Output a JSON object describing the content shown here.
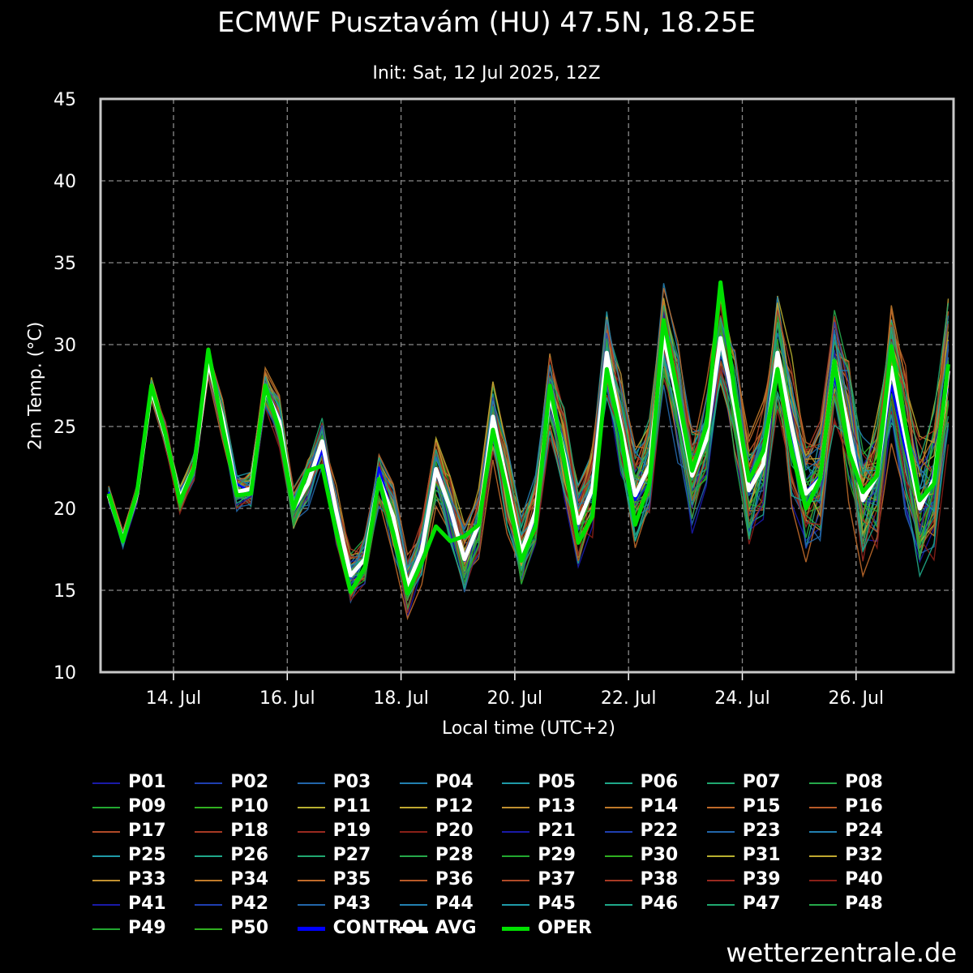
{
  "title": "ECMWF Pusztavám (HU) 47.5N, 18.25E",
  "subtitle": "Init: Sat, 12 Jul 2025, 12Z",
  "watermark": "wetterzentrale.de",
  "chart_data": {
    "type": "line",
    "ylabel": "2m Temp. (°C)",
    "xlabel": "Local time (UTC+2)",
    "ylim": [
      10,
      45
    ],
    "yticks": [
      10,
      15,
      20,
      25,
      30,
      35,
      40,
      45
    ],
    "x_start": "2025-07-12 20:00",
    "x_step_hours": 6,
    "x_tick_labels": [
      "14. Jul",
      "16. Jul",
      "18. Jul",
      "20. Jul",
      "22. Jul",
      "24. Jul",
      "26. Jul"
    ],
    "grid": true,
    "legend_placement": "below",
    "series": [
      {
        "name": "CONTROL",
        "color": "#0000ff",
        "values": [
          21,
          18.2,
          21,
          27.5,
          24.3,
          20.5,
          22.5,
          29.5,
          25.5,
          21.5,
          21,
          27.5,
          25.5,
          20,
          21.5,
          23.5,
          19.5,
          15.8,
          16.8,
          22.5,
          19.5,
          15.2,
          17.2,
          22.2,
          19.8,
          16.8,
          18.8,
          25.2,
          21.2,
          17.2,
          19.5,
          27,
          23,
          19,
          21,
          28.5,
          24,
          20.5,
          22.5,
          31,
          26.5,
          22,
          24,
          30.5,
          26.5,
          21.5,
          23.5,
          28.5,
          24.5,
          21,
          22,
          28,
          24.5,
          20.5,
          22,
          27.5,
          23.5,
          20,
          22,
          28
        ]
      },
      {
        "name": "AVG",
        "color": "#ffffff",
        "values": [
          20.8,
          18.1,
          20.9,
          27.3,
          24.4,
          20.6,
          22.5,
          29,
          25.5,
          21,
          21.2,
          27.3,
          25.3,
          20,
          21.5,
          24.1,
          19.8,
          15.9,
          16.9,
          21.8,
          19.5,
          15.3,
          17.4,
          22.4,
          20,
          16.9,
          19,
          25.6,
          21.5,
          17.3,
          19.8,
          27,
          23.3,
          19.1,
          21.2,
          29.5,
          25,
          20.8,
          22.6,
          30.5,
          26.5,
          22,
          24.2,
          30.4,
          26.2,
          21.1,
          22.7,
          29.5,
          25,
          20.9,
          21.8,
          29,
          24.8,
          20.5,
          22,
          28.6,
          24.3,
          20,
          21.8,
          28.4
        ]
      },
      {
        "name": "OPER",
        "color": "#00e000",
        "values": [
          20.9,
          18,
          21,
          27.5,
          24.5,
          20.4,
          22.5,
          29.7,
          25,
          20.8,
          20.9,
          27.5,
          24.8,
          20,
          22.3,
          22.6,
          18.5,
          14.9,
          16.4,
          21.8,
          18.5,
          14.8,
          16.7,
          18.9,
          18,
          18.3,
          19,
          24.8,
          21,
          16.8,
          18.9,
          27.5,
          23,
          17.9,
          19.5,
          28.5,
          24.5,
          19,
          21.5,
          31.5,
          27,
          22.3,
          25,
          33.8,
          27,
          21.7,
          23.5,
          28.5,
          23.5,
          20,
          21.8,
          29,
          23.5,
          21,
          22,
          29.9,
          25,
          20.5,
          21.5,
          28.8
        ]
      }
    ]
  },
  "legend": {
    "items": [
      {
        "label": "P01",
        "color": "#1a1aa8",
        "thick": false
      },
      {
        "label": "P02",
        "color": "#1f3fb0",
        "thick": false
      },
      {
        "label": "P03",
        "color": "#2266aa",
        "thick": false
      },
      {
        "label": "P04",
        "color": "#2280b0",
        "thick": false
      },
      {
        "label": "P05",
        "color": "#1f9aa8",
        "thick": false
      },
      {
        "label": "P06",
        "color": "#1fa88a",
        "thick": false
      },
      {
        "label": "P07",
        "color": "#20a870",
        "thick": false
      },
      {
        "label": "P08",
        "color": "#26a84a",
        "thick": false
      },
      {
        "label": "P09",
        "color": "#22a830",
        "thick": false
      },
      {
        "label": "P10",
        "color": "#30b020",
        "thick": false
      },
      {
        "label": "P11",
        "color": "#b8b030",
        "thick": false
      },
      {
        "label": "P12",
        "color": "#c0a830",
        "thick": false
      },
      {
        "label": "P13",
        "color": "#c09030",
        "thick": false
      },
      {
        "label": "P14",
        "color": "#c07a2a",
        "thick": false
      },
      {
        "label": "P15",
        "color": "#c06a2a",
        "thick": false
      },
      {
        "label": "P16",
        "color": "#b85a28",
        "thick": false
      },
      {
        "label": "P17",
        "color": "#b04a28",
        "thick": false
      },
      {
        "label": "P18",
        "color": "#a83a24",
        "thick": false
      },
      {
        "label": "P19",
        "color": "#9a2a20",
        "thick": false
      },
      {
        "label": "P20",
        "color": "#8a2018",
        "thick": false
      },
      {
        "label": "P21",
        "color": "#1a1aa8",
        "thick": false
      },
      {
        "label": "P22",
        "color": "#1f3fb0",
        "thick": false
      },
      {
        "label": "P23",
        "color": "#2266aa",
        "thick": false
      },
      {
        "label": "P24",
        "color": "#2280b0",
        "thick": false
      },
      {
        "label": "P25",
        "color": "#1f9aa8",
        "thick": false
      },
      {
        "label": "P26",
        "color": "#1fa88a",
        "thick": false
      },
      {
        "label": "P27",
        "color": "#20a870",
        "thick": false
      },
      {
        "label": "P28",
        "color": "#26a84a",
        "thick": false
      },
      {
        "label": "P29",
        "color": "#22a830",
        "thick": false
      },
      {
        "label": "P30",
        "color": "#30b020",
        "thick": false
      },
      {
        "label": "P31",
        "color": "#b8b030",
        "thick": false
      },
      {
        "label": "P32",
        "color": "#c0a830",
        "thick": false
      },
      {
        "label": "P33",
        "color": "#c09030",
        "thick": false
      },
      {
        "label": "P34",
        "color": "#c07a2a",
        "thick": false
      },
      {
        "label": "P35",
        "color": "#c06a2a",
        "thick": false
      },
      {
        "label": "P36",
        "color": "#b85a28",
        "thick": false
      },
      {
        "label": "P37",
        "color": "#b04a28",
        "thick": false
      },
      {
        "label": "P38",
        "color": "#a83a24",
        "thick": false
      },
      {
        "label": "P39",
        "color": "#9a2a20",
        "thick": false
      },
      {
        "label": "P40",
        "color": "#8a2018",
        "thick": false
      },
      {
        "label": "P41",
        "color": "#1a1aa8",
        "thick": false
      },
      {
        "label": "P42",
        "color": "#1f3fb0",
        "thick": false
      },
      {
        "label": "P43",
        "color": "#2266aa",
        "thick": false
      },
      {
        "label": "P44",
        "color": "#2280b0",
        "thick": false
      },
      {
        "label": "P45",
        "color": "#1f9aa8",
        "thick": false
      },
      {
        "label": "P46",
        "color": "#1fa88a",
        "thick": false
      },
      {
        "label": "P47",
        "color": "#20a870",
        "thick": false
      },
      {
        "label": "P48",
        "color": "#26a84a",
        "thick": false
      },
      {
        "label": "P49",
        "color": "#22a830",
        "thick": false
      },
      {
        "label": "P50",
        "color": "#30b020",
        "thick": false
      },
      {
        "label": "CONTROL",
        "color": "#0000ff",
        "thick": true
      },
      {
        "label": "AVG",
        "color": "#ffffff",
        "thick": true
      },
      {
        "label": "OPER",
        "color": "#00e000",
        "thick": true
      }
    ]
  }
}
